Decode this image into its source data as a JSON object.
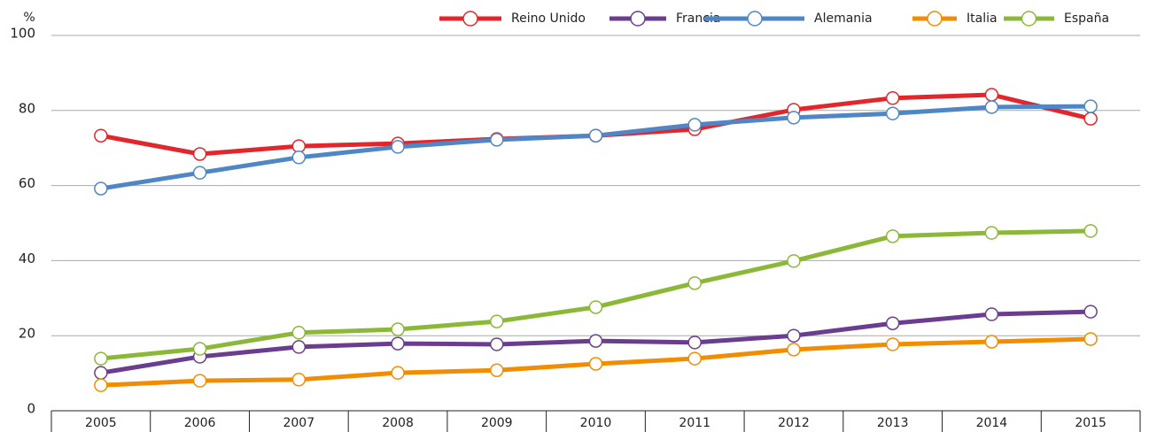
{
  "chart_data": {
    "type": "line",
    "unit_label": "%",
    "categories": [
      "2005",
      "2006",
      "2007",
      "2008",
      "2009",
      "2010",
      "2011",
      "2012",
      "2013",
      "2014",
      "2015"
    ],
    "series": [
      {
        "name": "Reino Unido",
        "color": "#e2262b",
        "values": [
          73.3,
          68.4,
          70.5,
          71.2,
          72.4,
          73.3,
          75.0,
          80.2,
          83.3,
          84.2,
          77.8
        ]
      },
      {
        "name": "Francia",
        "color": "#6a3d8f",
        "values": [
          10.1,
          14.4,
          17.0,
          17.9,
          17.7,
          18.6,
          18.2,
          20.0,
          23.3,
          25.7,
          26.4
        ]
      },
      {
        "name": "Alemania",
        "color": "#4f86c6",
        "values": [
          59.2,
          63.4,
          67.5,
          70.3,
          72.2,
          73.3,
          76.2,
          78.1,
          79.2,
          80.9,
          81.1
        ]
      },
      {
        "name": "Italia",
        "color": "#f28c00",
        "values": [
          6.8,
          8.0,
          8.3,
          10.1,
          10.8,
          12.5,
          13.9,
          16.3,
          17.7,
          18.4,
          19.1
        ]
      },
      {
        "name": "España",
        "color": "#8cb83a",
        "values": [
          13.9,
          16.5,
          20.8,
          21.7,
          23.8,
          27.6,
          34.0,
          39.9,
          46.5,
          47.4,
          47.9
        ]
      }
    ],
    "ylim": [
      0,
      100
    ],
    "yticks": [
      0,
      20,
      40,
      60,
      80,
      100
    ],
    "grid": true,
    "legend": "top-right"
  }
}
